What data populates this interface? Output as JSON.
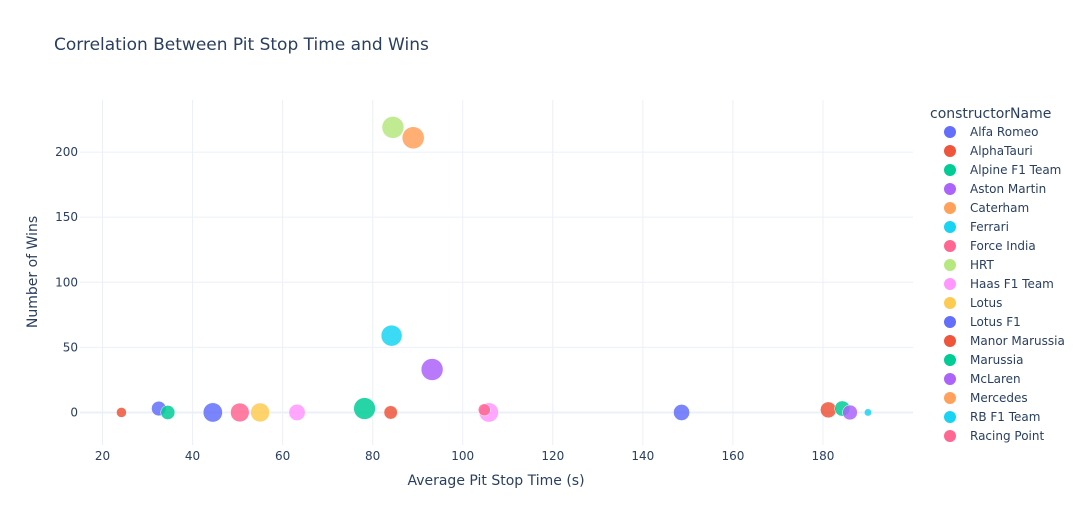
{
  "chart_data": {
    "type": "scatter",
    "title": "Correlation Between Pit Stop Time and Wins",
    "xlabel": "Average Pit Stop Time (s)",
    "ylabel": "Number of Wins",
    "xlim": [
      15,
      200
    ],
    "ylim": [
      -25,
      240
    ],
    "xticks": [
      20,
      40,
      60,
      80,
      100,
      120,
      140,
      160,
      180
    ],
    "yticks": [
      0,
      50,
      100,
      150,
      200
    ],
    "grid": true,
    "legend_title": "constructorName",
    "legend_position": "right",
    "series": [
      {
        "name": "Alfa Romeo",
        "color": "#636efa",
        "points": [
          {
            "x": 32.5,
            "y": 3,
            "size": 0.32
          }
        ]
      },
      {
        "name": "AlphaTauri",
        "color": "#EF553B",
        "points": [
          {
            "x": 24.2,
            "y": 0,
            "size": 0.15
          }
        ]
      },
      {
        "name": "Alpine F1 Team",
        "color": "#00cc96",
        "points": [
          {
            "x": 34.5,
            "y": 0,
            "size": 0.3
          }
        ]
      },
      {
        "name": "Aston Martin",
        "color": "#ab63fa",
        "points": []
      },
      {
        "name": "Caterham",
        "color": "#FFA15A",
        "points": []
      },
      {
        "name": "Ferrari",
        "color": "#19d3f3",
        "points": [
          {
            "x": 84.2,
            "y": 59,
            "size": 0.65
          }
        ]
      },
      {
        "name": "Force India",
        "color": "#FF6692",
        "points": [
          {
            "x": 50.5,
            "y": 0,
            "size": 0.52
          }
        ]
      },
      {
        "name": "HRT",
        "color": "#B6E880",
        "points": [
          {
            "x": 84.5,
            "y": 219,
            "size": 0.71
          }
        ]
      },
      {
        "name": "Haas F1 Team",
        "color": "#FF97FF",
        "points": [
          {
            "x": 63.2,
            "y": 0,
            "size": 0.4
          },
          {
            "x": 105.8,
            "y": 0,
            "size": 0.55
          }
        ]
      },
      {
        "name": "Lotus",
        "color": "#FECB52",
        "points": [
          {
            "x": 55.0,
            "y": 0,
            "size": 0.53
          }
        ]
      },
      {
        "name": "Lotus F1",
        "color": "#636efa",
        "points": [
          {
            "x": 44.5,
            "y": 0,
            "size": 0.55
          },
          {
            "x": 148.6,
            "y": 0,
            "size": 0.39
          }
        ]
      },
      {
        "name": "Manor Marussia",
        "color": "#EF553B",
        "points": [
          {
            "x": 84.0,
            "y": 0,
            "size": 0.27
          },
          {
            "x": 181.2,
            "y": 2,
            "size": 0.38
          }
        ]
      },
      {
        "name": "Marussia",
        "color": "#00cc96",
        "points": [
          {
            "x": 78.2,
            "y": 3,
            "size": 0.7
          },
          {
            "x": 184.3,
            "y": 3,
            "size": 0.35
          }
        ]
      },
      {
        "name": "McLaren",
        "color": "#ab63fa",
        "points": [
          {
            "x": 93.2,
            "y": 33,
            "size": 0.71
          },
          {
            "x": 186.0,
            "y": 0,
            "size": 0.33
          }
        ]
      },
      {
        "name": "Mercedes",
        "color": "#FFA15A",
        "points": [
          {
            "x": 89.0,
            "y": 211,
            "size": 0.72
          }
        ]
      },
      {
        "name": "RB F1 Team",
        "color": "#19d3f3",
        "points": [
          {
            "x": 190.0,
            "y": 0,
            "size": 0.08
          }
        ]
      },
      {
        "name": "Racing Point",
        "color": "#FF6692",
        "points": [
          {
            "x": 104.8,
            "y": 2,
            "size": 0.22
          }
        ]
      }
    ]
  }
}
